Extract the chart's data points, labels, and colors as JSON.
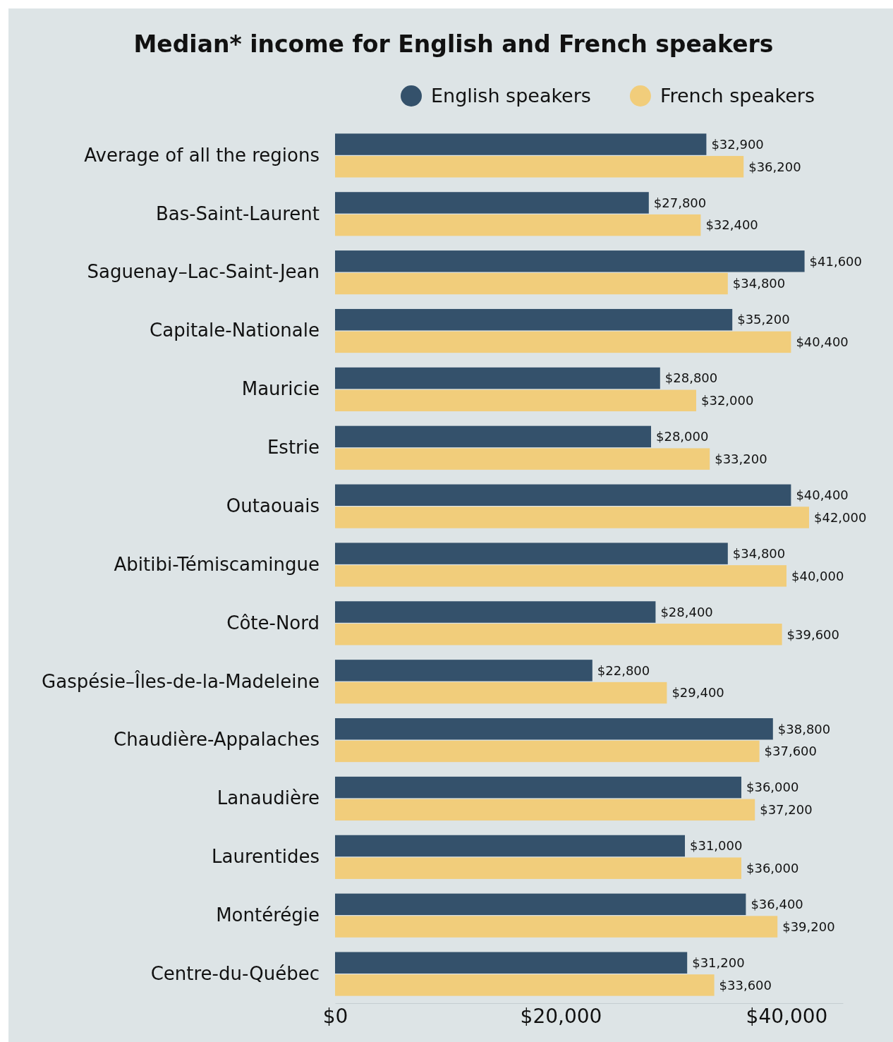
{
  "chart_data": {
    "type": "bar",
    "orientation": "horizontal",
    "title": "Median* income for English and French speakers",
    "categories": [
      "Average of all the regions",
      "Bas-Saint-Laurent",
      "Saguenay–Lac-Saint-Jean",
      "Capitale-Nationale",
      "Mauricie",
      "Estrie",
      "Outaouais",
      "Abitibi-Témiscamingue",
      "Côte-Nord",
      "Gaspésie–Îles-de-la-Madeleine",
      "Chaudière-Appalaches",
      "Lanaudière",
      "Laurentides",
      "Montérégie",
      "Centre-du-Québec"
    ],
    "series": [
      {
        "name": "English speakers",
        "color": "#34516b",
        "values": [
          32900,
          27800,
          41600,
          35200,
          28800,
          28000,
          40400,
          34800,
          28400,
          22800,
          38800,
          36000,
          31000,
          36400,
          31200
        ],
        "value_labels": [
          "$32,900",
          "$27,800",
          "$41,600",
          "$35,200",
          "$28,800",
          "$28,000",
          "$40,400",
          "$34,800",
          "$28,400",
          "$22,800",
          "$38,800",
          "$36,000",
          "$31,000",
          "$36,400",
          "$31,200"
        ]
      },
      {
        "name": "French speakers",
        "color": "#f1cd7b",
        "values": [
          36200,
          32400,
          34800,
          40400,
          32000,
          33200,
          42000,
          40000,
          39600,
          29400,
          37600,
          37200,
          36000,
          39200,
          33600
        ],
        "value_labels": [
          "$36,200",
          "$32,400",
          "$34,800",
          "$40,400",
          "$32,000",
          "$33,200",
          "$42,000",
          "$40,000",
          "$39,600",
          "$29,400",
          "$37,600",
          "$37,200",
          "$36,000",
          "$39,200",
          "$33,600"
        ]
      }
    ],
    "xlim": [
      0,
      45000
    ],
    "xticks": [
      {
        "value": 0,
        "label": "$0"
      },
      {
        "value": 20000,
        "label": "$20,000"
      },
      {
        "value": 40000,
        "label": "$40,000"
      }
    ],
    "legend": "top right",
    "grid": false
  }
}
